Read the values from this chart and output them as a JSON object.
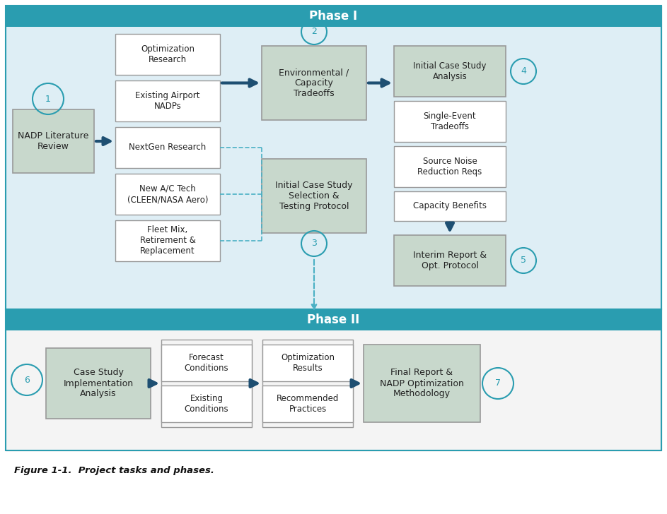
{
  "fig_width": 9.43,
  "fig_height": 7.28,
  "dpi": 100,
  "teal_color": "#2a9db0",
  "arrow_dark": "#1e4f72",
  "arrow_teal": "#4ab0c4",
  "box_gray_fill": "#c8d8cc",
  "box_white_fill": "#ffffff",
  "box_edge": "#999999",
  "phase1_header": "Phase I",
  "phase2_header": "Phase II",
  "caption": "Figure 1-1.  Project tasks and phases."
}
